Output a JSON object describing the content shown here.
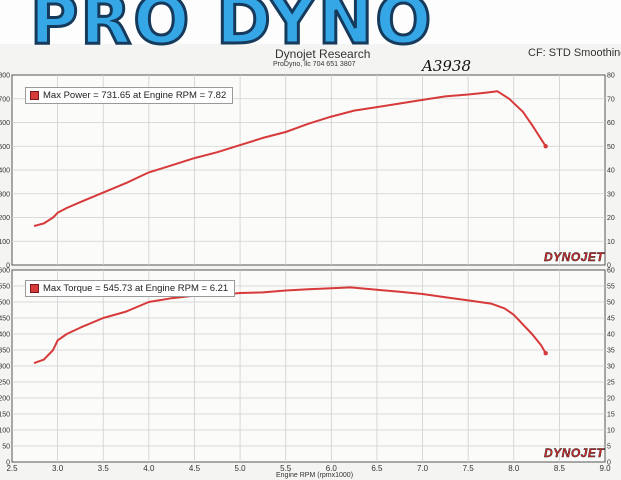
{
  "header": {
    "logo_text": "PRO DYNO",
    "company": "Dynojet Research",
    "contact": "ProDyno, llc 704 651 3807",
    "smoothing": "CF: STD Smoothing",
    "handwritten": "A3938"
  },
  "branding": {
    "dynojet": "DYNOJET"
  },
  "colors": {
    "curve": "#d63a3a",
    "logo_fill": "#35a7e6",
    "logo_outline": "#153a5c",
    "background": "#f4f4f2"
  },
  "chart_data": [
    {
      "type": "line",
      "legend": {
        "label": "Max Power = 731.65 at Engine RPM = 7.82",
        "placement": "top-left"
      },
      "x_ticks": [
        "2.5",
        "3.0",
        "3.5",
        "4.0",
        "4.5",
        "5.0",
        "5.5",
        "6.0",
        "6.5",
        "7.0",
        "7.5",
        "8.0",
        "8.5",
        "9.0"
      ],
      "y_ticks_left": [
        "0",
        "100",
        "200",
        "300",
        "400",
        "500",
        "600",
        "700",
        "800"
      ],
      "y_ticks_right": [
        "0",
        "10",
        "20",
        "30",
        "40",
        "50",
        "60",
        "70",
        "80"
      ],
      "xlim": [
        2.5,
        9.0
      ],
      "ylim": [
        0,
        800
      ],
      "grid": true,
      "series": [
        {
          "x": [
            2.75,
            2.85,
            2.95,
            3.0,
            3.1,
            3.25,
            3.5,
            3.75,
            4.0,
            4.25,
            4.5,
            4.75,
            5.0,
            5.25,
            5.5,
            5.75,
            6.0,
            6.25,
            6.5,
            6.75,
            7.0,
            7.25,
            7.5,
            7.7,
            7.82,
            7.95,
            8.1,
            8.2,
            8.3,
            8.35
          ],
          "y": [
            165,
            175,
            200,
            220,
            240,
            265,
            305,
            345,
            390,
            420,
            450,
            475,
            505,
            535,
            560,
            595,
            625,
            650,
            665,
            680,
            695,
            710,
            718,
            726,
            731.65,
            700,
            645,
            590,
            530,
            500
          ]
        }
      ]
    },
    {
      "type": "line",
      "legend": {
        "label": "Max Torque = 545.73 at Engine RPM = 6.21",
        "placement": "top-left"
      },
      "x_ticks": [
        "2.5",
        "3.0",
        "3.5",
        "4.0",
        "4.5",
        "5.0",
        "5.5",
        "6.0",
        "6.5",
        "7.0",
        "7.5",
        "8.0",
        "8.5",
        "9.0"
      ],
      "y_ticks_left": [
        "0",
        "50",
        "100",
        "150",
        "200",
        "250",
        "300",
        "350",
        "400",
        "450",
        "500",
        "550",
        "600"
      ],
      "y_ticks_right": [
        "0",
        "5",
        "10",
        "15",
        "20",
        "25",
        "30",
        "35",
        "40",
        "45",
        "50",
        "55",
        "60"
      ],
      "xlim": [
        2.5,
        9.0
      ],
      "ylim": [
        0,
        600
      ],
      "xlabel": "Engine RPM (rpmx1000)",
      "grid": true,
      "series": [
        {
          "x": [
            2.75,
            2.85,
            2.95,
            3.0,
            3.1,
            3.25,
            3.5,
            3.75,
            4.0,
            4.25,
            4.5,
            4.75,
            5.0,
            5.25,
            5.5,
            5.75,
            6.0,
            6.21,
            6.5,
            6.75,
            7.0,
            7.25,
            7.5,
            7.75,
            7.9,
            8.0,
            8.1,
            8.2,
            8.3,
            8.35
          ],
          "y": [
            310,
            320,
            350,
            380,
            400,
            420,
            450,
            470,
            500,
            512,
            520,
            522,
            528,
            530,
            536,
            540,
            543,
            545.73,
            538,
            532,
            525,
            515,
            505,
            495,
            480,
            460,
            430,
            400,
            365,
            340
          ]
        }
      ]
    }
  ]
}
